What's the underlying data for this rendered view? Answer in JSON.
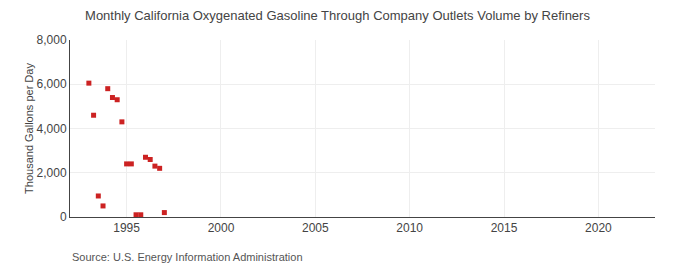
{
  "chart_data": {
    "type": "scatter",
    "title": "Monthly California Oxygenated Gasoline Through Company Outlets Volume by Refiners",
    "ylabel": "Thousand Gallons per Day",
    "annotations": [
      "Source: U.S. Energy Information Administration"
    ],
    "x": [
      1993.0,
      1993.25,
      1993.5,
      1993.75,
      1994.0,
      1994.25,
      1994.5,
      1994.75,
      1995.0,
      1995.25,
      1995.5,
      1995.75,
      1996.0,
      1996.25,
      1996.5,
      1996.75,
      1997.0
    ],
    "values": [
      6050,
      4600,
      950,
      500,
      5800,
      5400,
      5300,
      4300,
      2400,
      2400,
      100,
      100,
      2700,
      2600,
      2300,
      2200,
      200
    ],
    "color": "#cc2222",
    "marker": "square",
    "xlim": [
      1992.0,
      2023.0
    ],
    "ylim": [
      0,
      8000
    ],
    "xticks": [
      1995,
      2000,
      2005,
      2010,
      2015,
      2020
    ],
    "yticks": [
      0,
      {
        "value": 2000,
        "label": "2,000"
      },
      {
        "value": 4000,
        "label": "4,000"
      },
      {
        "value": 6000,
        "label": "6,000"
      },
      {
        "value": 8000,
        "label": "8,000"
      }
    ],
    "grid": true
  }
}
